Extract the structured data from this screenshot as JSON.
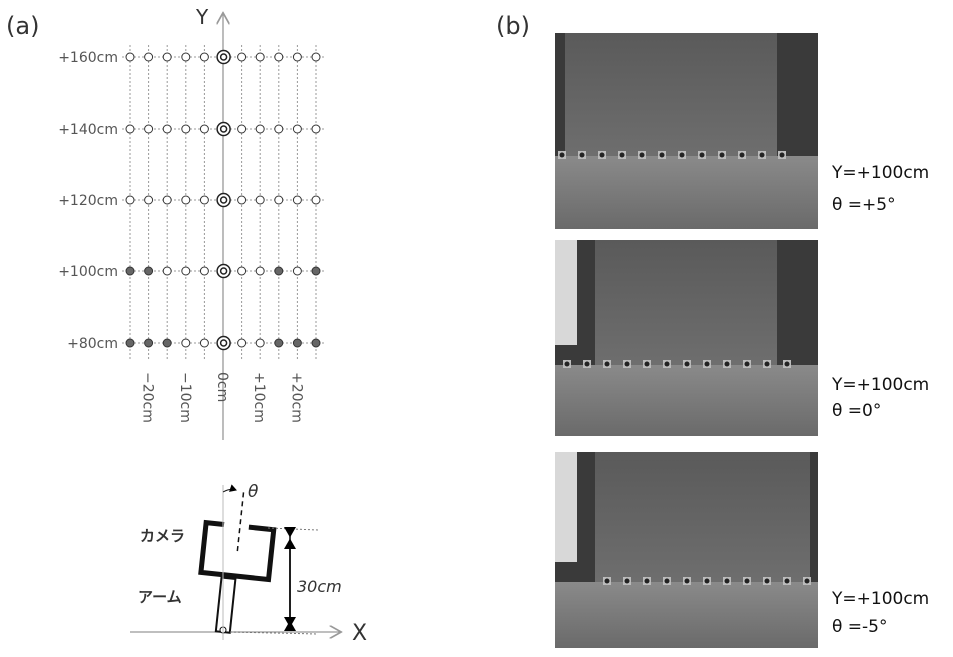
{
  "panel_a": {
    "label": "(a)",
    "y_axis_label": "Y",
    "x_axis_label": "X",
    "y_labels": [
      "+160cm",
      "+140cm",
      "+120cm",
      "+100cm",
      "+80cm"
    ],
    "x_labels": [
      "−20cm",
      "−10cm",
      "0cm",
      "+10cm",
      "+20cm"
    ],
    "robot": {
      "angle_label": "θ",
      "camera_label": "カメラ",
      "arm_label": "アーム",
      "length_label": "30cm"
    }
  },
  "panel_b": {
    "label": "(b)",
    "photos": [
      {
        "caption_y": "Y=+100cm",
        "caption_theta": "θ =+5°"
      },
      {
        "caption_y": "Y=+100cm",
        "caption_theta": "θ =0°"
      },
      {
        "caption_y": "Y=+100cm",
        "caption_theta": "θ =-5°"
      }
    ]
  }
}
